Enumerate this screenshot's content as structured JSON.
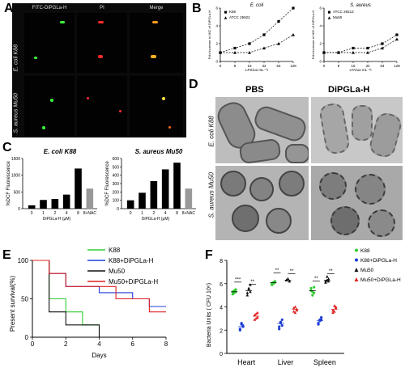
{
  "panels": {
    "A": {
      "label": "A",
      "columns": [
        "FITC-DiPGLa-H",
        "PI",
        "Merge"
      ],
      "rows": [
        "E. coli K88",
        "S. aureus Mu50"
      ]
    },
    "B": {
      "label": "B",
      "left": {
        "title": "E. coli",
        "legend": [
          "K88",
          "ATCC 25922"
        ],
        "xlabel": "LPS(μg mL⁻¹)",
        "ylabel": "Fold increase in MIC of DiPGLa-H"
      },
      "right": {
        "title": "S. aureus",
        "legend": [
          "ATCC 29213",
          "Mu50"
        ],
        "xlabel": "LTA(μg mL⁻¹)",
        "ylabel": "Fold increase in MIC of DiPGLa-H"
      }
    },
    "C": {
      "label": "C",
      "left": {
        "title": "E. coli K88",
        "ylabel": "%DCF Fluorescence",
        "xlabel": "DiPGLa-H (μM)"
      },
      "right": {
        "title": "S. aureus Mu50",
        "ylabel": "%DCF Fluorescence",
        "xlabel": "DiPGLa-H (μM)"
      }
    },
    "D": {
      "label": "D",
      "columns": [
        "PBS",
        "DiPGLa-H"
      ],
      "rows": [
        "E. coli K88",
        "S. aureus Mu50"
      ]
    },
    "E": {
      "label": "E",
      "ylabel": "Present survival(%)",
      "xlabel": "Days",
      "legend": [
        "K88",
        "K88+DiPGLa-H",
        "Mu50",
        "Mu50+DiPGLa-H"
      ]
    },
    "F": {
      "label": "F",
      "ylabel": "Bacteria Units ( CFU 10⁶)",
      "legend": [
        "K88",
        "K88+DiPGLa-H",
        "Mu50",
        "Mu50+DiPGLa-H"
      ],
      "sig": [
        "***",
        "**",
        "**",
        "**",
        "**",
        "**"
      ]
    }
  },
  "chart_data": [
    {
      "type": "line",
      "panel": "B-left",
      "title": "E. coli",
      "x": [
        0,
        8,
        16,
        32,
        64,
        128
      ],
      "x_ticks": [
        "0",
        "8",
        "16",
        "32",
        "64",
        "128"
      ],
      "series": [
        {
          "name": "K88",
          "values": [
            1,
            1.5,
            2,
            3,
            4.5,
            6
          ]
        },
        {
          "name": "ATCC 25922",
          "values": [
            1,
            1,
            1,
            1.5,
            2,
            3
          ]
        }
      ],
      "xlabel": "LPS(μg mL⁻¹)",
      "ylabel": "Fold increase in MIC of DiPGLa-H",
      "ylim": [
        0,
        6
      ],
      "y_ticks": [
        "0",
        "2",
        "4",
        "6"
      ]
    },
    {
      "type": "line",
      "panel": "B-right",
      "title": "S. aureus",
      "x": [
        0,
        8,
        16,
        32,
        64,
        128
      ],
      "x_ticks": [
        "0",
        "8",
        "16",
        "32",
        "64",
        "128"
      ],
      "series": [
        {
          "name": "ATCC 29213",
          "values": [
            1,
            1,
            1.5,
            1.5,
            2,
            3
          ]
        },
        {
          "name": "Mu50",
          "values": [
            1,
            1,
            1,
            1,
            1.5,
            2.5
          ]
        }
      ],
      "xlabel": "LTA(μg mL⁻¹)",
      "ylabel": "Fold increase in MIC of DiPGLa-H",
      "ylim": [
        0,
        6
      ],
      "y_ticks": [
        "0",
        "2",
        "4",
        "6"
      ]
    },
    {
      "type": "bar",
      "panel": "C-left",
      "title": "E. coli K88",
      "categories": [
        "0",
        "1",
        "2",
        "4",
        "8",
        "8+NAC"
      ],
      "values": [
        100,
        260,
        290,
        420,
        1200,
        600
      ],
      "colors": [
        "#000000",
        "#000000",
        "#000000",
        "#000000",
        "#000000",
        "#999999"
      ],
      "ylabel": "%DCF Fluorescence",
      "xlabel": "DiPGLa-H (μM)",
      "ylim": [
        0,
        1500
      ],
      "y_ticks": [
        "0",
        "500",
        "1000",
        "1500"
      ]
    },
    {
      "type": "bar",
      "panel": "C-right",
      "title": "S. aureus Mu50",
      "categories": [
        "0",
        "1",
        "2",
        "4",
        "8",
        "8+NAC"
      ],
      "values": [
        100,
        190,
        330,
        470,
        550,
        240
      ],
      "colors": [
        "#000000",
        "#000000",
        "#000000",
        "#000000",
        "#000000",
        "#999999"
      ],
      "ylabel": "%DCF Fluorescence",
      "xlabel": "DiPGLa-H (μM)",
      "ylim": [
        0,
        600
      ],
      "y_ticks": [
        "0",
        "100",
        "200",
        "300",
        "400",
        "500",
        "600"
      ]
    },
    {
      "type": "line",
      "panel": "E",
      "step": true,
      "xlabel": "Days",
      "ylabel": "Present survival(%)",
      "xlim": [
        0,
        8
      ],
      "ylim": [
        0,
        100
      ],
      "x_ticks": [
        "0",
        "2",
        "4",
        "6",
        "8"
      ],
      "y_ticks": [
        "0",
        "50",
        "100"
      ],
      "series": [
        {
          "name": "K88",
          "color": "#33cc33",
          "points": [
            [
              0,
              100
            ],
            [
              1,
              100
            ],
            [
              1,
              50
            ],
            [
              2,
              50
            ],
            [
              2,
              33
            ],
            [
              3,
              33
            ],
            [
              3,
              16
            ],
            [
              4,
              16
            ],
            [
              4,
              0
            ]
          ]
        },
        {
          "name": "K88+DiPGLa-H",
          "color": "#1f3fd8",
          "points": [
            [
              0,
              100
            ],
            [
              1,
              100
            ],
            [
              1,
              83
            ],
            [
              2,
              83
            ],
            [
              2,
              66
            ],
            [
              4,
              66
            ],
            [
              4,
              58
            ],
            [
              6,
              58
            ],
            [
              6,
              50
            ],
            [
              7,
              50
            ],
            [
              7,
              40
            ],
            [
              8,
              40
            ]
          ]
        },
        {
          "name": "Mu50",
          "color": "#111111",
          "points": [
            [
              0,
              100
            ],
            [
              1,
              100
            ],
            [
              1,
              33
            ],
            [
              2,
              33
            ],
            [
              2,
              16
            ],
            [
              4,
              16
            ],
            [
              4,
              0
            ]
          ]
        },
        {
          "name": "Mu50+DiPGLa-H",
          "color": "#e02020",
          "points": [
            [
              0,
              100
            ],
            [
              1,
              100
            ],
            [
              1,
              83
            ],
            [
              2,
              83
            ],
            [
              2,
              66
            ],
            [
              5,
              66
            ],
            [
              5,
              50
            ],
            [
              7,
              50
            ],
            [
              7,
              33
            ],
            [
              8,
              33
            ]
          ]
        }
      ]
    },
    {
      "type": "scatter",
      "panel": "F",
      "categories": [
        "Heart",
        "Liver",
        "Spleen"
      ],
      "ylabel": "Bacteria Units ( CFU 10⁶)",
      "ylim": [
        0,
        8
      ],
      "y_ticks": [
        "0",
        "2",
        "4",
        "6",
        "8"
      ],
      "series": [
        {
          "name": "K88",
          "color": "#33cc33",
          "marker": "circle",
          "means": [
            5.3,
            6.1,
            5.4
          ],
          "points": [
            [
              5.3,
              5.2,
              5.5,
              5.1,
              5.4,
              5.3
            ],
            [
              6.0,
              6.1,
              6.2,
              5.9,
              6.0,
              6.1
            ],
            [
              5.4,
              5.0,
              5.7,
              5.6,
              5.3,
              5.2
            ]
          ]
        },
        {
          "name": "K88+DiPGLa-H",
          "color": "#1f3fd8",
          "marker": "circle",
          "means": [
            2.3,
            2.6,
            2.8
          ],
          "points": [
            [
              2.1,
              2.5,
              2.3,
              2.0,
              2.6,
              2.4
            ],
            [
              2.3,
              2.7,
              2.9,
              2.1,
              2.6,
              2.4
            ],
            [
              2.6,
              2.9,
              3.1,
              2.5,
              2.8,
              2.9
            ]
          ]
        },
        {
          "name": "Mu50",
          "color": "#111111",
          "marker": "triangle",
          "means": [
            5.4,
            6.3,
            6.3
          ],
          "points": [
            [
              5.0,
              5.6,
              5.9,
              5.2,
              5.5,
              5.3
            ],
            [
              6.3,
              6.4,
              6.2,
              6.3,
              6.4,
              6.2
            ],
            [
              6.2,
              6.6,
              6.4,
              6.1,
              6.3,
              6.2
            ]
          ]
        },
        {
          "name": "Mu50+DiPGLa-H",
          "color": "#e02020",
          "marker": "triangle",
          "means": [
            3.2,
            3.8,
            3.8
          ],
          "points": [
            [
              2.9,
              3.4,
              3.1,
              3.3,
              3.0,
              3.5
            ],
            [
              3.6,
              4.0,
              3.7,
              3.9,
              3.5,
              3.8
            ],
            [
              3.5,
              4.1,
              3.9,
              3.7,
              3.6,
              4.0
            ]
          ]
        }
      ]
    }
  ]
}
